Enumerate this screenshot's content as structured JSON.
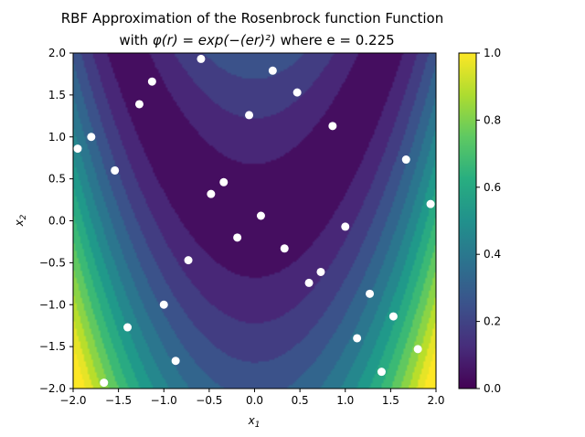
{
  "chart_data": {
    "type": "contour",
    "title_line1": "RBF Approximation of the Rosenbrock function Function",
    "title_line2_prefix": "with ",
    "title_line2_formula": "φ(r) = exp(−(er)²)",
    "title_line2_suffix": " where e = 0.225",
    "xlabel": "x",
    "xlabel_sub": "1",
    "ylabel": "x",
    "ylabel_sub": "2",
    "xlim": [
      -2.0,
      2.0
    ],
    "ylim": [
      -2.0,
      2.0
    ],
    "xticks": [
      "−2.0",
      "−1.5",
      "−1.0",
      "−0.5",
      "0.0",
      "0.5",
      "1.0",
      "1.5",
      "2.0"
    ],
    "yticks": [
      "−2.0",
      "−1.5",
      "−1.0",
      "−0.5",
      "0.0",
      "0.5",
      "1.0",
      "1.5",
      "2.0"
    ],
    "xtick_values": [
      -2.0,
      -1.5,
      -1.0,
      -0.5,
      0.0,
      0.5,
      1.0,
      1.5,
      2.0
    ],
    "ytick_values": [
      -2.0,
      -1.5,
      -1.0,
      -0.5,
      0.0,
      0.5,
      1.0,
      1.5,
      2.0
    ],
    "colorbar": {
      "range": [
        0.0,
        1.0
      ],
      "ticks": [
        "0.0",
        "0.2",
        "0.4",
        "0.6",
        "0.8",
        "1.0"
      ],
      "tick_values": [
        0.0,
        0.2,
        0.4,
        0.6,
        0.8,
        1.0
      ],
      "colormap": "viridis"
    },
    "sample_points": [
      {
        "x": -1.95,
        "y": 0.86
      },
      {
        "x": -1.8,
        "y": 1.0
      },
      {
        "x": -1.54,
        "y": 0.6
      },
      {
        "x": -1.27,
        "y": 1.39
      },
      {
        "x": -1.13,
        "y": 1.66
      },
      {
        "x": -0.59,
        "y": 1.93
      },
      {
        "x": -0.48,
        "y": 0.32
      },
      {
        "x": -0.34,
        "y": 0.46
      },
      {
        "x": -0.06,
        "y": 1.26
      },
      {
        "x": 0.2,
        "y": 1.79
      },
      {
        "x": 0.47,
        "y": 1.53
      },
      {
        "x": 0.86,
        "y": 1.13
      },
      {
        "x": 1.67,
        "y": 0.73
      },
      {
        "x": 1.94,
        "y": 0.2
      },
      {
        "x": 0.07,
        "y": 0.06
      },
      {
        "x": 1.0,
        "y": -0.07
      },
      {
        "x": -0.19,
        "y": -0.2
      },
      {
        "x": 0.33,
        "y": -0.33
      },
      {
        "x": -0.73,
        "y": -0.47
      },
      {
        "x": 0.73,
        "y": -0.61
      },
      {
        "x": 0.6,
        "y": -0.74
      },
      {
        "x": 1.27,
        "y": -0.87
      },
      {
        "x": -1.0,
        "y": -1.0
      },
      {
        "x": 1.53,
        "y": -1.14
      },
      {
        "x": -1.4,
        "y": -1.27
      },
      {
        "x": 1.13,
        "y": -1.4
      },
      {
        "x": 1.8,
        "y": -1.53
      },
      {
        "x": -0.87,
        "y": -1.67
      },
      {
        "x": 1.4,
        "y": -1.8
      },
      {
        "x": -1.66,
        "y": -1.93
      }
    ],
    "point_color": "#ffffff",
    "grid": false,
    "legend": "none"
  }
}
